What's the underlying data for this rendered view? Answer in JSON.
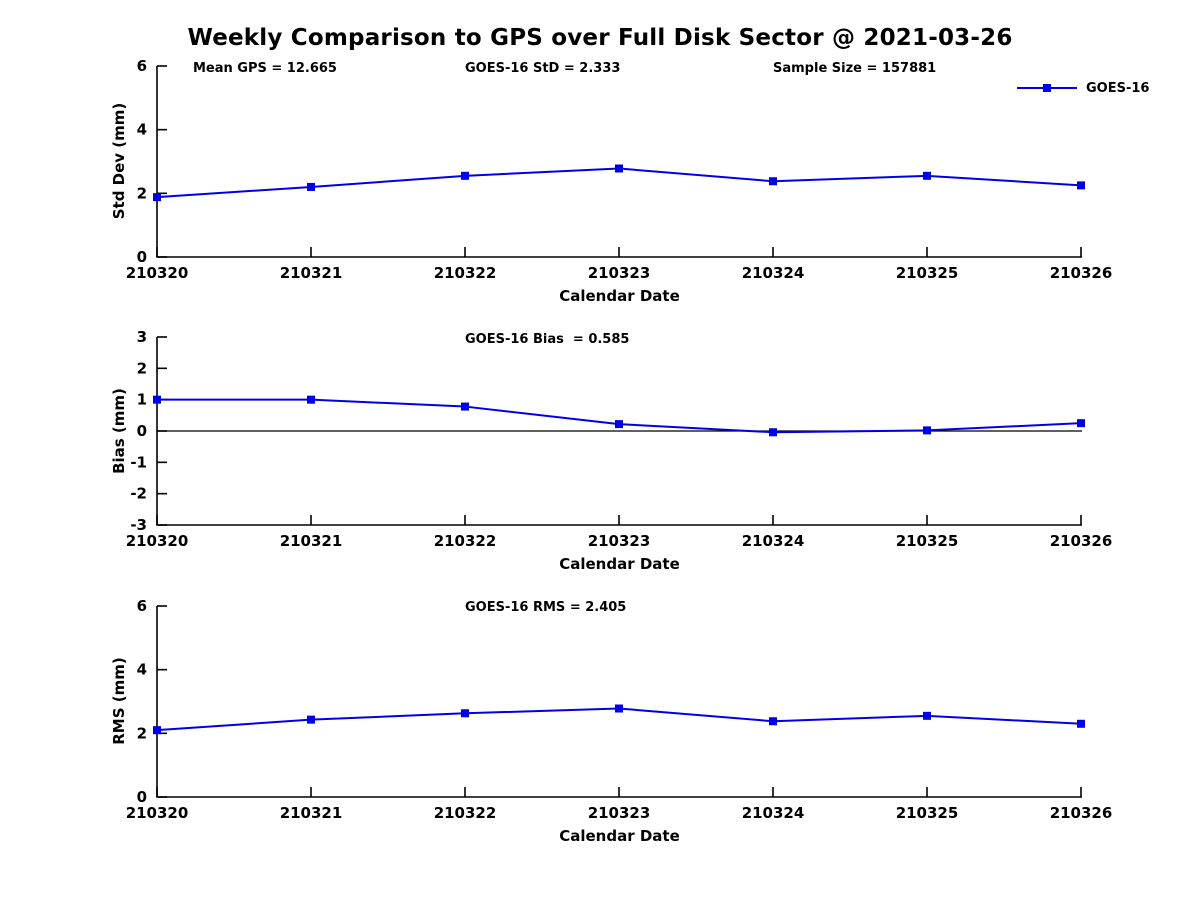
{
  "figure": {
    "title": "Weekly Comparison to GPS over Full Disk Sector @ 2021-03-26",
    "series_color": "#0000E6",
    "axis_color": "#000000",
    "background_color": "#FFFFFF",
    "legend": {
      "label": "GOES-16"
    }
  },
  "annotations": {
    "mean_gps": "Mean GPS = 12.665",
    "goes_std": "GOES-16 StD = 2.333",
    "sample_size": "Sample Size = 157881",
    "goes_bias": "GOES-16 Bias  = 0.585",
    "goes_rms": "GOES-16 RMS = 2.405"
  },
  "chart_data": [
    {
      "type": "line",
      "name": "std-dev-panel",
      "xlabel": "Calendar Date",
      "ylabel": "Std Dev (mm)",
      "ylim": [
        0,
        6
      ],
      "yticks": [
        0,
        2,
        4,
        6
      ],
      "categories": [
        "210320",
        "210321",
        "210322",
        "210323",
        "210324",
        "210325",
        "210326"
      ],
      "series": [
        {
          "name": "GOES-16",
          "values": [
            1.88,
            2.2,
            2.55,
            2.78,
            2.38,
            2.55,
            2.25
          ]
        }
      ],
      "zero_line": false,
      "grid": false,
      "legend_position": "outside-top-right"
    },
    {
      "type": "line",
      "name": "bias-panel",
      "xlabel": "Calendar Date",
      "ylabel": "Bias (mm)",
      "ylim": [
        -3,
        3
      ],
      "yticks": [
        -3,
        -2,
        -1,
        0,
        1,
        2,
        3
      ],
      "categories": [
        "210320",
        "210321",
        "210322",
        "210323",
        "210324",
        "210325",
        "210326"
      ],
      "series": [
        {
          "name": "GOES-16",
          "values": [
            1.0,
            1.0,
            0.78,
            0.22,
            -0.04,
            0.02,
            0.25
          ]
        }
      ],
      "zero_line": true,
      "grid": false,
      "legend_position": "none"
    },
    {
      "type": "line",
      "name": "rms-panel",
      "xlabel": "Calendar Date",
      "ylabel": "RMS (mm)",
      "ylim": [
        0,
        6
      ],
      "yticks": [
        0,
        2,
        4,
        6
      ],
      "categories": [
        "210320",
        "210321",
        "210322",
        "210323",
        "210324",
        "210325",
        "210326"
      ],
      "series": [
        {
          "name": "GOES-16",
          "values": [
            2.1,
            2.43,
            2.63,
            2.78,
            2.38,
            2.55,
            2.3
          ]
        }
      ],
      "zero_line": false,
      "grid": false,
      "legend_position": "none"
    }
  ]
}
